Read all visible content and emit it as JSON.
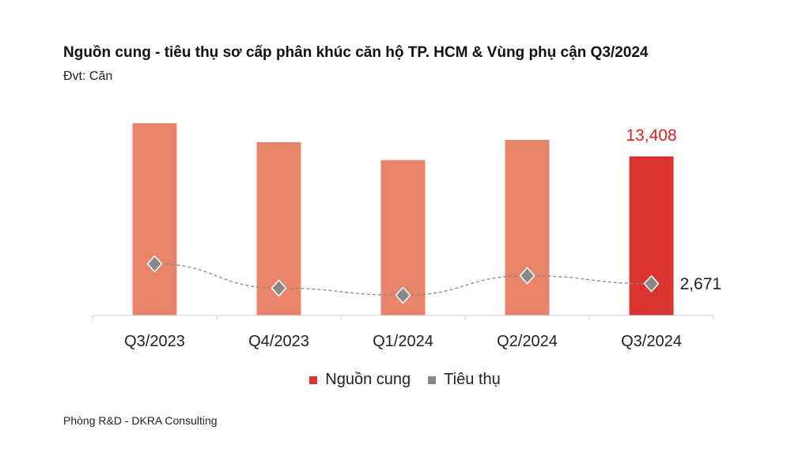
{
  "title": "Nguồn cung - tiêu thụ sơ cấp phân khúc căn hộ TP. HCM & Vùng phụ cận Q3/2024",
  "subtitle": "Đvt: Căn",
  "footer": "Phòng R&D - DKRA Consulting",
  "chart_data": {
    "type": "bar",
    "categories": [
      "Q3/2023",
      "Q4/2023",
      "Q1/2024",
      "Q2/2024",
      "Q3/2024"
    ],
    "series": [
      {
        "name": "Nguồn cung",
        "type": "bar",
        "values": [
          16200,
          14600,
          13100,
          14800,
          13408
        ],
        "color": "#E8846A",
        "highlight_color": "#D93430"
      },
      {
        "name": "Tiêu thụ",
        "type": "line",
        "values": [
          4350,
          2300,
          1700,
          3350,
          2671
        ],
        "color": "#888888",
        "marker": "diamond",
        "line_style": "dashed"
      }
    ],
    "data_labels": {
      "bar_last": "13,408",
      "line_last": "2,671"
    },
    "ylim": [
      0,
      16500
    ],
    "grid": false,
    "legend": "bottom"
  }
}
